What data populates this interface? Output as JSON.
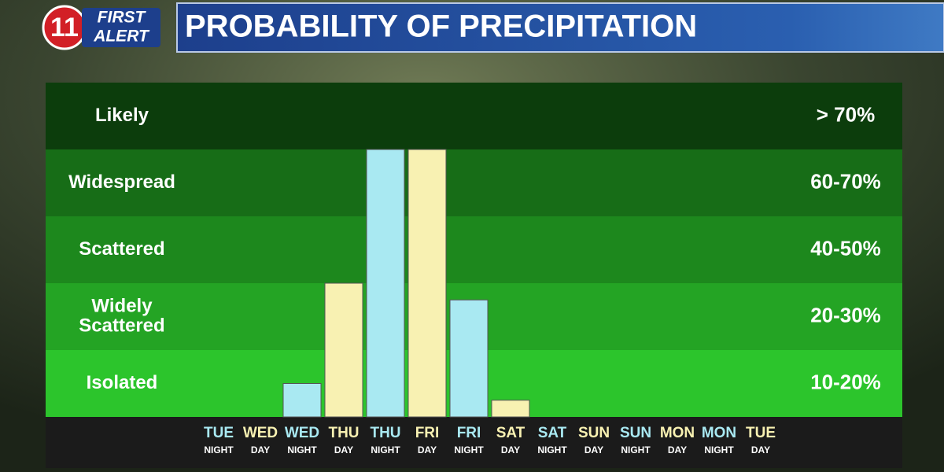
{
  "logo": {
    "number": "11",
    "line1": "FIRST",
    "line2": "ALERT"
  },
  "chart_data": {
    "type": "bar",
    "title": "PROBABILITY OF PRECIPITATION",
    "categories": [
      "TUE",
      "WED",
      "WED",
      "THU",
      "THU",
      "FRI",
      "FRI",
      "SAT",
      "SAT",
      "SUN",
      "SUN",
      "MON",
      "MON",
      "TUE"
    ],
    "periods": [
      "NIGHT",
      "DAY",
      "NIGHT",
      "DAY",
      "NIGHT",
      "DAY",
      "NIGHT",
      "DAY",
      "NIGHT",
      "DAY",
      "NIGHT",
      "DAY",
      "NIGHT",
      "DAY"
    ],
    "period_colors": {
      "NIGHT": "#a9e9f2",
      "DAY": "#f8f1b2"
    },
    "values": [
      0,
      0,
      0.5,
      2,
      4,
      4,
      1.75,
      0.25,
      0,
      0,
      0,
      0,
      0,
      0
    ],
    "ylim": [
      0,
      5
    ],
    "bands": [
      {
        "label": [
          "Isolated"
        ],
        "range": "10-20%",
        "color": "#2cc52c"
      },
      {
        "label": [
          "Widely",
          "Scattered"
        ],
        "range": "20-30%",
        "color": "#24a424"
      },
      {
        "label": [
          "Scattered"
        ],
        "range": "40-50%",
        "color": "#1d881d"
      },
      {
        "label": [
          "Widespread"
        ],
        "range": "60-70%",
        "color": "#176d17"
      },
      {
        "label": [
          "Likely"
        ],
        "range": "> 70%",
        "color": "#0c3d0c"
      }
    ]
  }
}
